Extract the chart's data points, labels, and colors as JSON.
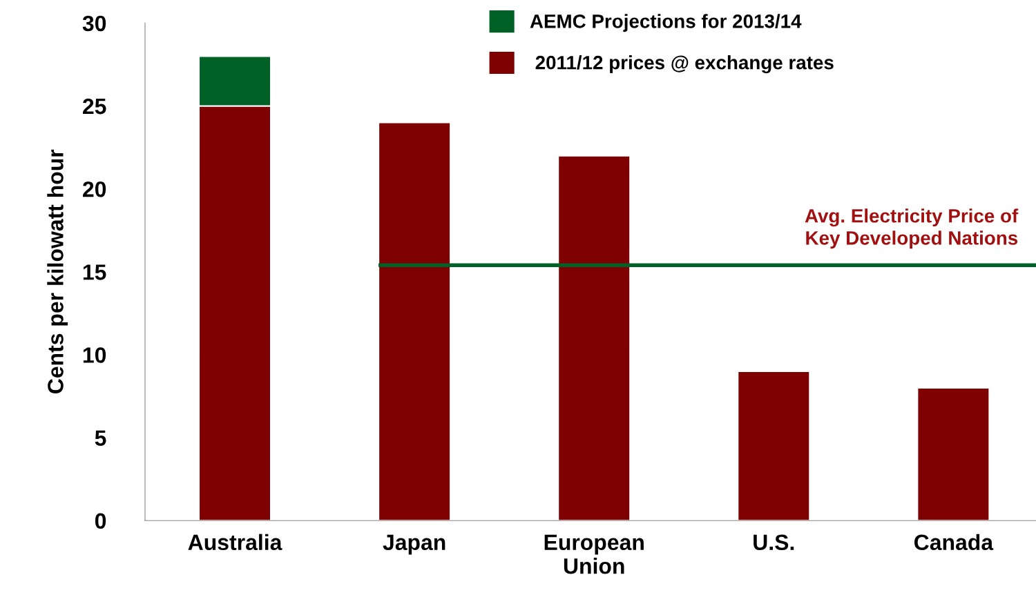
{
  "chart_data": {
    "type": "bar",
    "stacked": true,
    "ylabel": "Cents per kilowatt hour",
    "categories": [
      "Australia",
      "Japan",
      "European\nUnion",
      "U.S.",
      "Canada"
    ],
    "series": [
      {
        "name": " 2011/12 prices @ exchange rates",
        "color": "#7f0000",
        "values": [
          25,
          24,
          22,
          9,
          8
        ]
      },
      {
        "name": "AEMC Projections for 2013/14",
        "color": "#006127",
        "values": [
          3,
          null,
          null,
          null,
          null
        ]
      }
    ],
    "ylim": [
      0,
      30
    ],
    "yticks": [
      0,
      5,
      10,
      15,
      20,
      25,
      30
    ],
    "grid": false,
    "legend": "top",
    "ref_lines": [
      {
        "axis": "y",
        "value": 15.4,
        "label": "Avg. Electricity Price of\nKey Developed Nations",
        "color": "#006127",
        "line_style": "solid"
      }
    ]
  }
}
